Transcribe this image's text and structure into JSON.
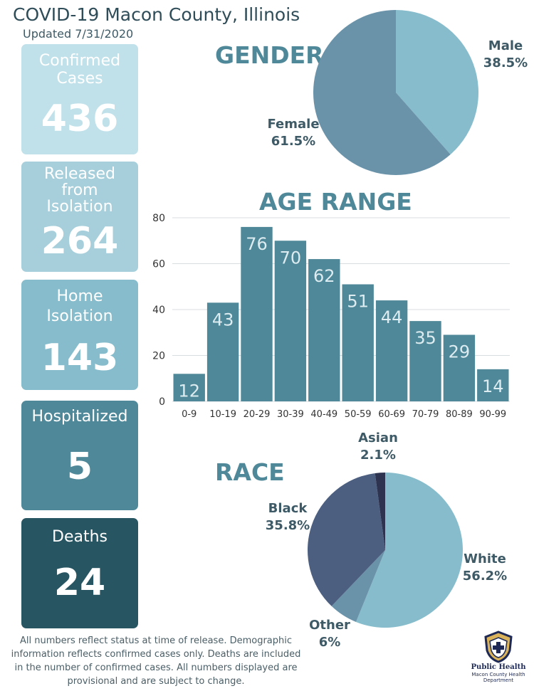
{
  "title": "COVID-19 Macon County, Illinois",
  "updated": "Updated 7/31/2020",
  "stats": {
    "confirmed": {
      "label": "Confirmed Cases",
      "value": "436"
    },
    "released": {
      "label": "Released from Isolation",
      "value": "264"
    },
    "home": {
      "label": "Home Isolation",
      "value": "143"
    },
    "hospitalized": {
      "label": "Hospitalized",
      "value": "5"
    },
    "deaths": {
      "label": "Deaths",
      "value": "24"
    }
  },
  "gender": {
    "heading": "GENDER",
    "male_label": "Male",
    "male_pct": "38.5%",
    "female_label": "Female",
    "female_pct": "61.5%"
  },
  "age": {
    "heading": "AGE RANGE"
  },
  "race": {
    "heading": "RACE",
    "asian_label": "Asian",
    "asian_pct": "2.1%",
    "black_label": "Black",
    "black_pct": "35.8%",
    "white_label": "White",
    "white_pct": "56.2%",
    "other_label": "Other",
    "other_pct": "6%"
  },
  "chart_data": [
    {
      "type": "pie",
      "categories": [
        "Male",
        "Female"
      ],
      "values": [
        38.5,
        61.5
      ],
      "colors": [
        "#86bccb",
        "#6a93aa"
      ]
    },
    {
      "type": "bar",
      "categories": [
        "0-9",
        "10-19",
        "20-29",
        "30-39",
        "40-49",
        "50-59",
        "60-69",
        "70-79",
        "80-89",
        "90-99"
      ],
      "values": [
        12,
        43,
        76,
        70,
        62,
        51,
        44,
        35,
        29,
        14
      ],
      "ylim": [
        0,
        80
      ],
      "yticks": [
        0,
        20,
        40,
        60,
        80
      ],
      "grid": true,
      "bar_color": "#4f8898"
    },
    {
      "type": "pie",
      "categories": [
        "White",
        "Other",
        "Black",
        "Asian"
      ],
      "values": [
        56.2,
        6,
        35.8,
        2.1
      ],
      "colors": [
        "#86bccb",
        "#6a93aa",
        "#4d5f80",
        "#2e3450"
      ]
    }
  ],
  "disclaimer": "All numbers reflect status at time of release. Demographic information reflects confirmed cases only. Deaths are included in the number of confirmed cases. All numbers displayed are provisional and are subject to change.",
  "logo": {
    "line1": "Public Health",
    "line2": "Macon County Health Department"
  }
}
